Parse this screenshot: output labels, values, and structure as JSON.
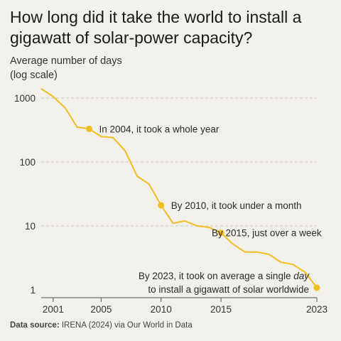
{
  "chart_data": {
    "type": "line",
    "title": "How long did it take the world to install a gigawatt of solar-power capacity?",
    "ylabel_line1": "Average number of days",
    "ylabel_line2": "(log scale)",
    "y_scale": "log",
    "ylim": [
      1,
      1000
    ],
    "xlim": [
      2000,
      2023
    ],
    "y_ticks": [
      {
        "value": 1,
        "label": "1"
      },
      {
        "value": 10,
        "label": "10"
      },
      {
        "value": 100,
        "label": "100"
      },
      {
        "value": 1000,
        "label": "1000"
      }
    ],
    "x_ticks": [
      {
        "value": 2001,
        "label": "2001"
      },
      {
        "value": 2005,
        "label": "2005"
      },
      {
        "value": 2010,
        "label": "2010"
      },
      {
        "value": 2015,
        "label": "2015"
      },
      {
        "value": 2023,
        "label": "2023"
      }
    ],
    "grid": "horizontal dashed",
    "line_color": "#f2be1f",
    "series": [
      {
        "x": [
          2000,
          2001,
          2002,
          2003,
          2004,
          2005,
          2006,
          2007,
          2008,
          2009,
          2010,
          2011,
          2012,
          2013,
          2014,
          2015,
          2016,
          2017,
          2018,
          2019,
          2020,
          2021,
          2022,
          2023
        ],
        "y": [
          1400,
          1050,
          700,
          350,
          330,
          250,
          240,
          150,
          60,
          45,
          21,
          11,
          12,
          10,
          9.5,
          7.8,
          5.2,
          3.9,
          3.9,
          3.6,
          2.7,
          2.5,
          1.9,
          1.08
        ]
      }
    ],
    "highlights": [
      {
        "x": 2004,
        "y": 330
      },
      {
        "x": 2010,
        "y": 21
      },
      {
        "x": 2015,
        "y": 7.8
      },
      {
        "x": 2023,
        "y": 1.08
      }
    ],
    "annotations": [
      {
        "text": "In 2004, it took a whole year"
      },
      {
        "text": "By 2010, it took under a month"
      },
      {
        "text": "By 2015, just over a week"
      },
      {
        "text_before": "By 2023, it took on average a single ",
        "text_italic": "day",
        "text_line2": "to install a gigawatt of solar worldwide"
      }
    ]
  },
  "footer": {
    "source_label": "Data source:",
    "source_text": " IRENA (2024) via Our World in Data"
  }
}
